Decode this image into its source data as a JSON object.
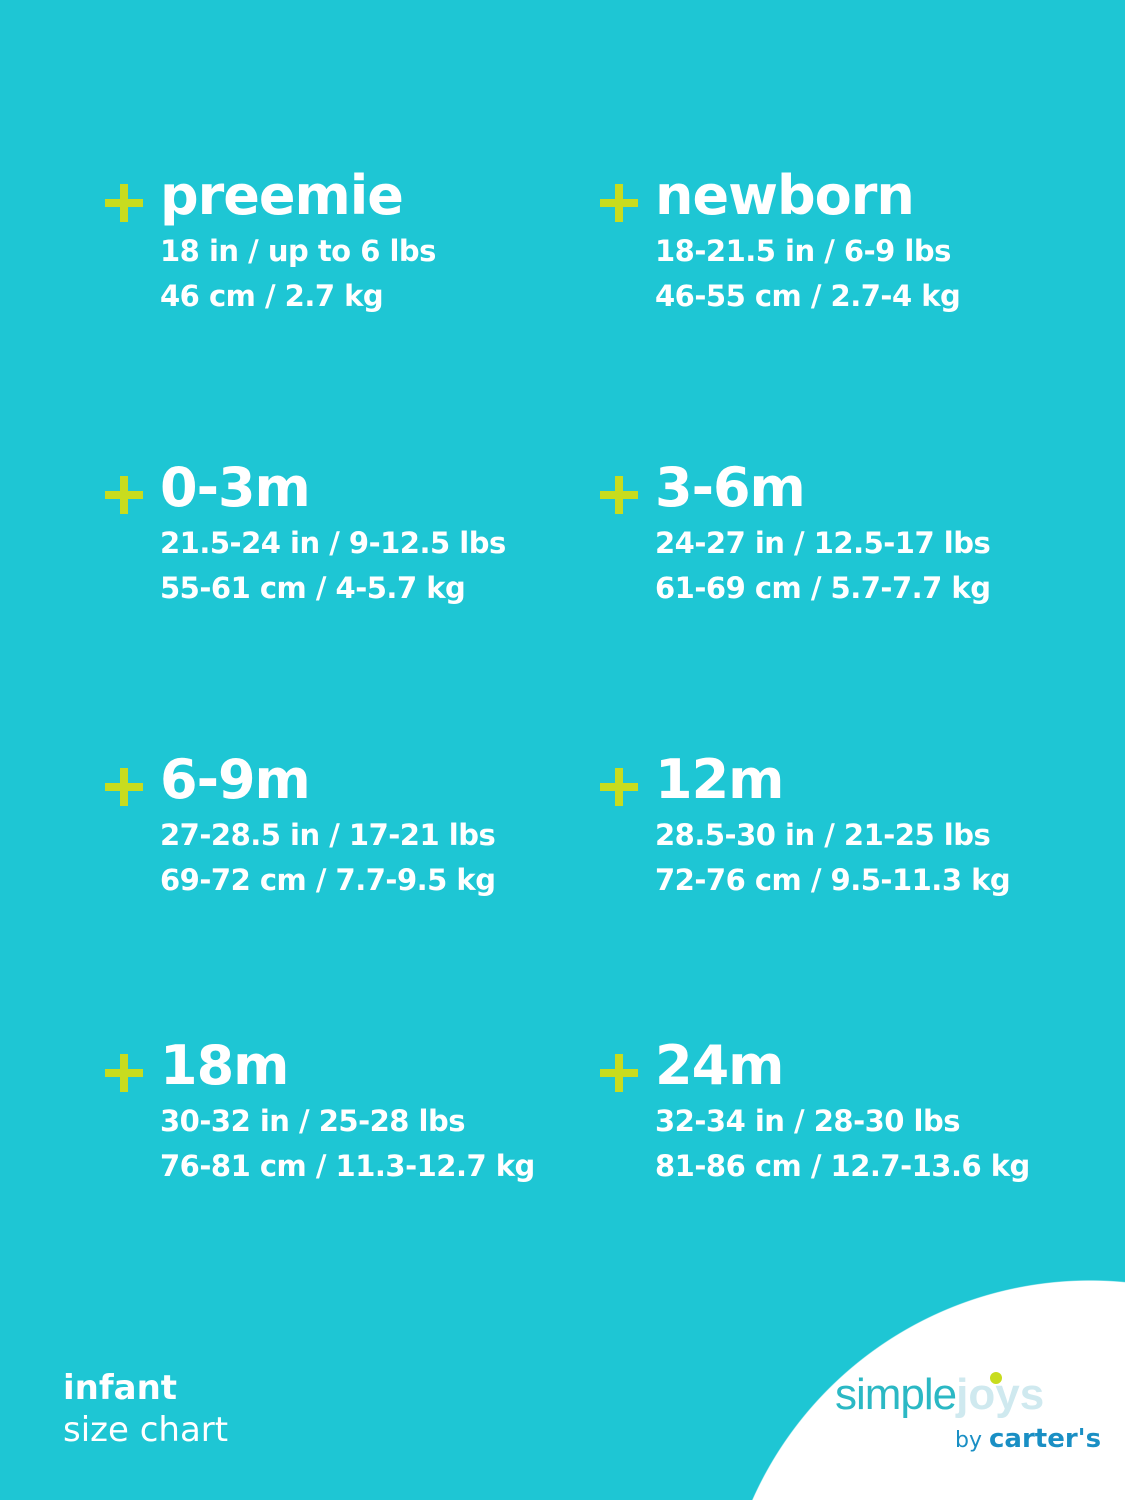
{
  "sizes": [
    {
      "name": "preemie",
      "imperial": "18 in / up to 6 lbs",
      "metric": "46 cm / 2.7 kg"
    },
    {
      "name": "newborn",
      "imperial": "18-21.5 in / 6-9 lbs",
      "metric": "46-55 cm / 2.7-4 kg"
    },
    {
      "name": "0-3m",
      "imperial": "21.5-24 in / 9-12.5 lbs",
      "metric": "55-61 cm / 4-5.7 kg"
    },
    {
      "name": "3-6m",
      "imperial": "24-27 in / 12.5-17 lbs",
      "metric": "61-69 cm / 5.7-7.7 kg"
    },
    {
      "name": "6-9m",
      "imperial": "27-28.5 in / 17-21 lbs",
      "metric": "69-72 cm / 7.7-9.5 kg"
    },
    {
      "name": "12m",
      "imperial": "28.5-30 in / 21-25 lbs",
      "metric": "72-76 cm / 9.5-11.3 kg"
    },
    {
      "name": "18m",
      "imperial": "30-32 in / 25-28 lbs",
      "metric": "76-81 cm / 11.3-12.7 kg"
    },
    {
      "name": "24m",
      "imperial": "32-34 in / 28-30 lbs",
      "metric": "81-86 cm / 12.7-13.6 kg"
    }
  ],
  "footer": {
    "line1": "infant",
    "line2": "size chart"
  },
  "logo": {
    "word1": "simple",
    "word2": "joys",
    "by": "by",
    "brand": "carter's"
  },
  "colors": {
    "background": "#1ec6d4",
    "accent": "#c8dc1e",
    "text": "#ffffff"
  }
}
